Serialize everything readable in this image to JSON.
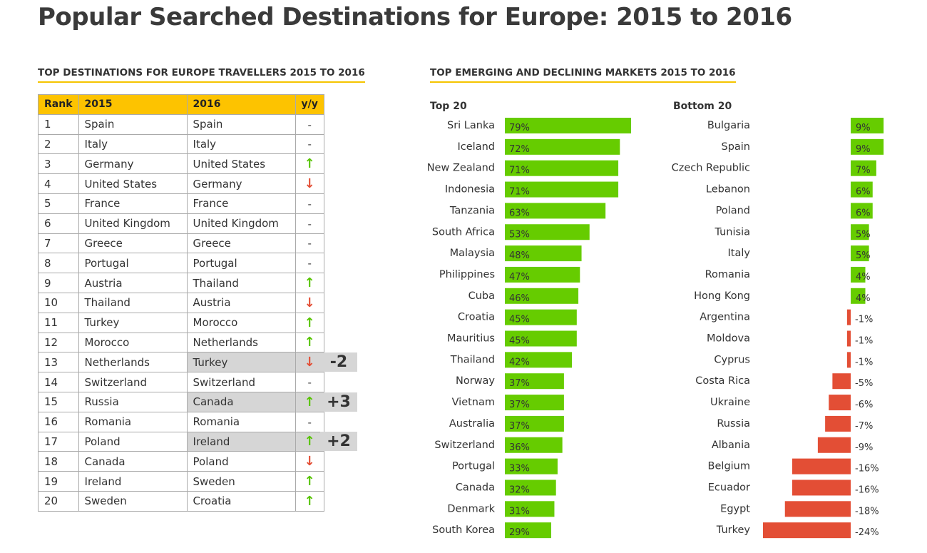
{
  "title": "Popular Searched Destinations for Europe: 2015 to 2016",
  "rank_table": {
    "heading": "TOP DESTINATIONS FOR EUROPE TRAVELLERS 2015 TO 2016",
    "headers": [
      "Rank",
      "2015",
      "2016",
      "y/y"
    ],
    "rows": [
      {
        "rank": "1",
        "y2015": "Spain",
        "y2016": "Spain",
        "yy": "-",
        "trend": "same"
      },
      {
        "rank": "2",
        "y2015": "Italy",
        "y2016": "Italy",
        "yy": "-",
        "trend": "same"
      },
      {
        "rank": "3",
        "y2015": "Germany",
        "y2016": "United States",
        "yy": "↑",
        "trend": "up"
      },
      {
        "rank": "4",
        "y2015": "United States",
        "y2016": "Germany",
        "yy": "↓",
        "trend": "down"
      },
      {
        "rank": "5",
        "y2015": "France",
        "y2016": "France",
        "yy": "-",
        "trend": "same"
      },
      {
        "rank": "6",
        "y2015": "United Kingdom",
        "y2016": "United Kingdom",
        "yy": "-",
        "trend": "same"
      },
      {
        "rank": "7",
        "y2015": "Greece",
        "y2016": "Greece",
        "yy": "-",
        "trend": "same"
      },
      {
        "rank": "8",
        "y2015": "Portugal",
        "y2016": "Portugal",
        "yy": "-",
        "trend": "same"
      },
      {
        "rank": "9",
        "y2015": "Austria",
        "y2016": "Thailand",
        "yy": "↑",
        "trend": "up"
      },
      {
        "rank": "10",
        "y2015": "Thailand",
        "y2016": "Austria",
        "yy": "↓",
        "trend": "down"
      },
      {
        "rank": "11",
        "y2015": "Turkey",
        "y2016": "Morocco",
        "yy": "↑",
        "trend": "up"
      },
      {
        "rank": "12",
        "y2015": "Morocco",
        "y2016": "Netherlands",
        "yy": "↑",
        "trend": "up"
      },
      {
        "rank": "13",
        "y2015": "Netherlands",
        "y2016": "Turkey",
        "yy": "↓",
        "trend": "down",
        "highlight": true,
        "change": "-2"
      },
      {
        "rank": "14",
        "y2015": "Switzerland",
        "y2016": "Switzerland",
        "yy": "-",
        "trend": "same"
      },
      {
        "rank": "15",
        "y2015": "Russia",
        "y2016": "Canada",
        "yy": "↑",
        "trend": "up",
        "highlight": true,
        "change": "+3"
      },
      {
        "rank": "16",
        "y2015": "Romania",
        "y2016": "Romania",
        "yy": "-",
        "trend": "same"
      },
      {
        "rank": "17",
        "y2015": "Poland",
        "y2016": "Ireland",
        "yy": "↑",
        "trend": "up",
        "highlight": true,
        "change": "+2"
      },
      {
        "rank": "18",
        "y2015": "Canada",
        "y2016": "Poland",
        "yy": "↓",
        "trend": "down"
      },
      {
        "rank": "19",
        "y2015": "Ireland",
        "y2016": "Sweden",
        "yy": "↑",
        "trend": "up"
      },
      {
        "rank": "20",
        "y2015": "Sweden",
        "y2016": "Croatia",
        "yy": "↑",
        "trend": "up"
      }
    ]
  },
  "colors": {
    "header_yellow": "#fdc300",
    "positive_green": "#57c400",
    "negative_red": "#e34e35",
    "highlight_gray": "#d6d6d6",
    "underline_yellow": "#f5c400"
  },
  "chart_data": [
    {
      "type": "bar",
      "orientation": "horizontal",
      "heading": "TOP EMERGING AND DECLINING MARKETS 2015 TO 2016",
      "title": "Top 20",
      "categories": [
        "Sri Lanka",
        "Iceland",
        "New Zealand",
        "Indonesia",
        "Tanzania",
        "South Africa",
        "Malaysia",
        "Philippines",
        "Cuba",
        "Croatia",
        "Mauritius",
        "Thailand",
        "Norway",
        "Vietnam",
        "Australia",
        "Switzerland",
        "Portugal",
        "Canada",
        "Denmark",
        "South Korea"
      ],
      "values": [
        79,
        72,
        71,
        71,
        63,
        53,
        48,
        47,
        46,
        45,
        45,
        42,
        37,
        37,
        37,
        36,
        33,
        32,
        31,
        29
      ],
      "labels": [
        "79%",
        "72%",
        "71%",
        "71%",
        "63%",
        "53%",
        "48%",
        "47%",
        "46%",
        "45%",
        "45%",
        "42%",
        "37%",
        "37%",
        "37%",
        "36%",
        "33%",
        "32%",
        "31%",
        "29%"
      ],
      "unit": "%",
      "color": "#66cc00"
    },
    {
      "type": "bar",
      "orientation": "horizontal",
      "title": "Bottom 20",
      "categories": [
        "Bulgaria",
        "Spain",
        "Czech Republic",
        "Lebanon",
        "Poland",
        "Tunisia",
        "Italy",
        "Romania",
        "Hong Kong",
        "Argentina",
        "Moldova",
        "Cyprus",
        "Costa Rica",
        "Ukraine",
        "Russia",
        "Albania",
        "Belgium",
        "Ecuador",
        "Egypt",
        "Turkey"
      ],
      "values": [
        9,
        9,
        7,
        6,
        6,
        5,
        5,
        4,
        4,
        -1,
        -1,
        -1,
        -5,
        -6,
        -7,
        -9,
        -16,
        -16,
        -18,
        -24
      ],
      "labels": [
        "9%",
        "9%",
        "7%",
        "6%",
        "6%",
        "5%",
        "5%",
        "4%",
        "4%",
        "-1%",
        "-1%",
        "-1%",
        "-5%",
        "-6%",
        "-7%",
        "-9%",
        "-16%",
        "-16%",
        "-18%",
        "-24%"
      ],
      "unit": "%",
      "positive_color": "#66cc00",
      "negative_color": "#e34e35"
    }
  ]
}
